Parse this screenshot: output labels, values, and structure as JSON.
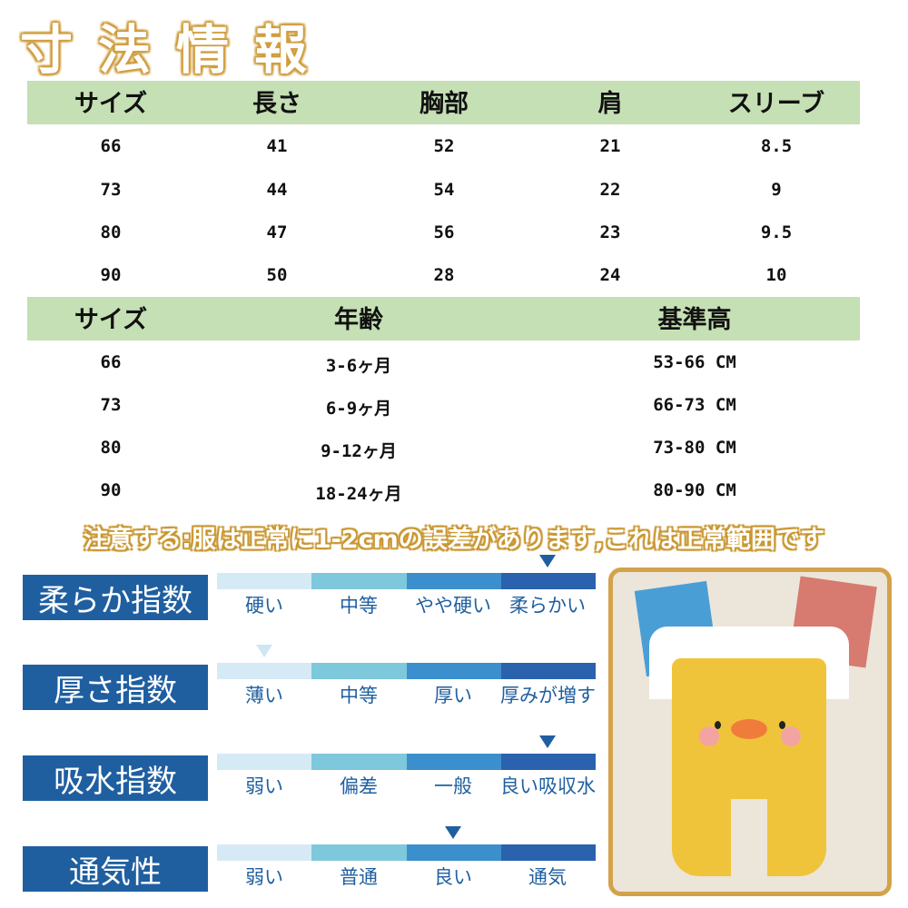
{
  "title": "寸法情報",
  "size_table": {
    "headers": [
      "サイズ",
      "長さ",
      "胸部",
      "肩",
      "スリーブ"
    ],
    "rows": [
      [
        "66",
        "41",
        "52",
        "21",
        "8.5"
      ],
      [
        "73",
        "44",
        "54",
        "22",
        "9"
      ],
      [
        "80",
        "47",
        "56",
        "23",
        "9.5"
      ],
      [
        "90",
        "50",
        "28",
        "24",
        "10"
      ]
    ]
  },
  "age_table": {
    "headers": [
      "サイズ",
      "年齢",
      "基準高"
    ],
    "rows": [
      [
        "66",
        "3-6ヶ月",
        "53-66 CM"
      ],
      [
        "73",
        "6-9ヶ月",
        "66-73 CM"
      ],
      [
        "80",
        "9-12ヶ月",
        "73-80 CM"
      ],
      [
        "90",
        "18-24ヶ月",
        "80-90 CM"
      ]
    ]
  },
  "notice": "注意する:服は正常に1-2cmの誤差があります,これは正常範囲です",
  "scale_colors": [
    "#d6eaf6",
    "#7ec8dc",
    "#3b8fcc",
    "#2a62ad"
  ],
  "indices": [
    {
      "label": "柔らか指数",
      "options": [
        "硬い",
        "中等",
        "やや硬い",
        "柔らかい"
      ],
      "selected": 3
    },
    {
      "label": "厚さ指数",
      "options": [
        "薄い",
        "中等",
        "厚い",
        "厚みが増す"
      ],
      "selected": 0
    },
    {
      "label": "吸水指数",
      "options": [
        "弱い",
        "偏差",
        "一般",
        "良い吸収水"
      ],
      "selected": 3
    },
    {
      "label": "通気性",
      "options": [
        "弱い",
        "普通",
        "良い",
        "通気"
      ],
      "selected": 2
    }
  ]
}
